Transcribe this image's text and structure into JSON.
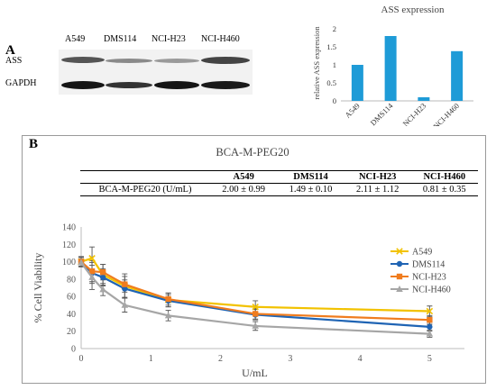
{
  "panel_a": {
    "label": "A",
    "blot": {
      "columns": [
        "A549",
        "DMS114",
        "NCI-H23",
        "NCI-H460"
      ],
      "rows": [
        "ASS",
        "GAPDH"
      ]
    }
  },
  "panel_b": {
    "label": "B",
    "table": {
      "headers": [
        "",
        "A549",
        "DMS114",
        "NCI-H23",
        "NCI-H460"
      ],
      "row": [
        "BCA-M-PEG20 (U/mL)",
        "2.00 ± 0.99",
        "1.49 ± 0.10",
        "2.11 ± 1.12",
        "0.81 ± 0.35"
      ]
    }
  },
  "chart_data": [
    {
      "type": "bar",
      "title": "ASS expression",
      "ylabel": "relative ASS expression",
      "categories": [
        "A549",
        "DMS114",
        "NCI-H23",
        "NCI-H460"
      ],
      "values": [
        1.0,
        1.8,
        0.1,
        1.38
      ],
      "ylim": [
        0,
        2
      ],
      "yticks": [
        "0",
        "0.5",
        "1",
        "1.5",
        "2"
      ],
      "color": "#1e9bd7",
      "grid": false
    },
    {
      "type": "line",
      "title": "BCA-M-PEG20",
      "xlabel": "U/mL",
      "ylabel": "% Cell Viability",
      "xlim": [
        0,
        5.5
      ],
      "ylim": [
        0,
        140
      ],
      "xticks": [
        "0",
        "1",
        "2",
        "3",
        "4",
        "5"
      ],
      "yticks": [
        "0",
        "20",
        "40",
        "60",
        "80",
        "100",
        "120",
        "140"
      ],
      "legend": "right",
      "x": [
        0,
        0.156,
        0.3125,
        0.625,
        1.25,
        2.5,
        5
      ],
      "series": [
        {
          "name": "A549",
          "color": "#f2c200",
          "marker": "x",
          "values": [
            100,
            104,
            85,
            72,
            56,
            48,
            43
          ],
          "errors": [
            6,
            13,
            12,
            14,
            8,
            7,
            6
          ]
        },
        {
          "name": "DMS114",
          "color": "#1f64b4",
          "marker": "circle",
          "values": [
            100,
            87,
            82,
            69,
            55,
            39,
            25
          ],
          "errors": [
            5,
            12,
            10,
            10,
            7,
            6,
            5
          ]
        },
        {
          "name": "NCI-H23",
          "color": "#f07c1e",
          "marker": "square",
          "values": [
            100,
            89,
            88,
            74,
            57,
            40,
            33
          ],
          "errors": [
            5,
            12,
            9,
            9,
            7,
            6,
            5
          ]
        },
        {
          "name": "NCI-H460",
          "color": "#a6a6a6",
          "marker": "triangle",
          "values": [
            99,
            82,
            68,
            50,
            38,
            26,
            17
          ],
          "errors": [
            4,
            14,
            7,
            8,
            6,
            5,
            4
          ]
        }
      ]
    }
  ]
}
